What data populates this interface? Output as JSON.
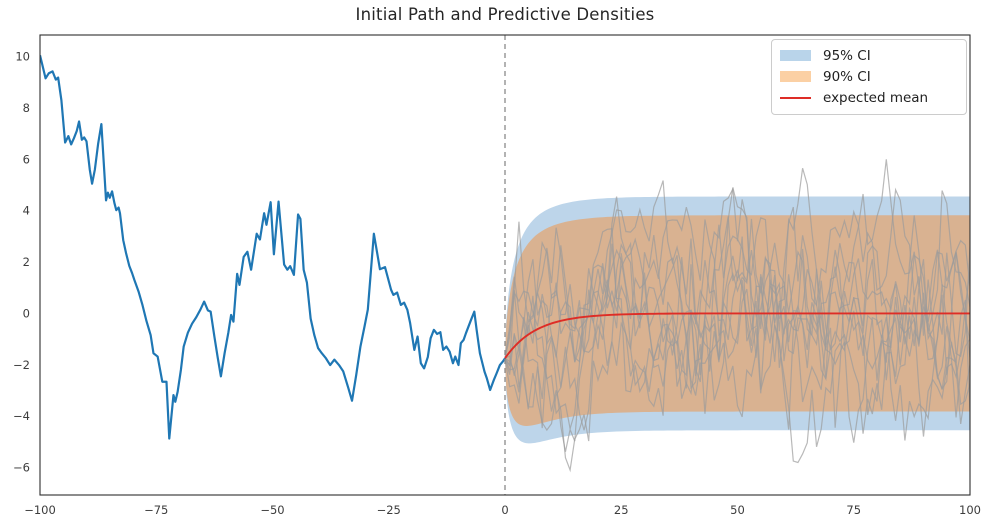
{
  "chart_data": {
    "type": "line",
    "title": "Initial Path and Predictive Densities",
    "xlabel": "",
    "ylabel": "",
    "xlim": [
      -100,
      100
    ],
    "ylim": [
      -7.1,
      10.8
    ],
    "x_ticks": [
      -100,
      -75,
      -50,
      -25,
      0,
      25,
      50,
      75,
      100
    ],
    "y_ticks": [
      10,
      8,
      6,
      4,
      2,
      0,
      -2,
      -4,
      -6
    ],
    "grid": false,
    "legend_position": "upper right",
    "legend": [
      {
        "label": "95% CI",
        "swatch": "patch",
        "color": "#b9d4ea"
      },
      {
        "label": "90% CI",
        "swatch": "patch",
        "color": "#fbd0a4"
      },
      {
        "label": "expected mean",
        "swatch": "line",
        "color": "#de2d26"
      }
    ],
    "divider": {
      "x": 0,
      "color": "#8a8a8a",
      "style": "dashed"
    },
    "initial_path": {
      "name": "initial path",
      "color": "#1f77b4",
      "points": [
        [
          -100,
          10.05
        ],
        [
          -99.4,
          9.6
        ],
        [
          -98.8,
          9.15
        ],
        [
          -98.1,
          9.35
        ],
        [
          -97.3,
          9.42
        ],
        [
          -96.6,
          9.1
        ],
        [
          -96.1,
          9.18
        ],
        [
          -95.4,
          8.3
        ],
        [
          -94.6,
          6.65
        ],
        [
          -93.9,
          6.9
        ],
        [
          -93.3,
          6.58
        ],
        [
          -92.7,
          6.82
        ],
        [
          -92.1,
          7.1
        ],
        [
          -91.6,
          7.47
        ],
        [
          -91,
          6.76
        ],
        [
          -90.5,
          6.85
        ],
        [
          -90,
          6.7
        ],
        [
          -89.3,
          5.6
        ],
        [
          -88.8,
          5.05
        ],
        [
          -88.2,
          5.6
        ],
        [
          -87.5,
          6.6
        ],
        [
          -86.8,
          7.37
        ],
        [
          -86.2,
          5.6
        ],
        [
          -85.8,
          4.4
        ],
        [
          -85.4,
          4.7
        ],
        [
          -85,
          4.5
        ],
        [
          -84.5,
          4.75
        ],
        [
          -84,
          4.3
        ],
        [
          -83.6,
          4.02
        ],
        [
          -83.1,
          4.12
        ],
        [
          -82.8,
          3.9
        ],
        [
          -82.1,
          2.85
        ],
        [
          -81.5,
          2.35
        ],
        [
          -80.8,
          1.85
        ],
        [
          -80.2,
          1.57
        ],
        [
          -79.7,
          1.3
        ],
        [
          -78.8,
          0.85
        ],
        [
          -78,
          0.35
        ],
        [
          -77.1,
          -0.3
        ],
        [
          -76.2,
          -0.85
        ],
        [
          -75.6,
          -1.55
        ],
        [
          -74.7,
          -1.68
        ],
        [
          -73.7,
          -2.66
        ],
        [
          -72.8,
          -2.66
        ],
        [
          -72.2,
          -4.87
        ],
        [
          -71.3,
          -3.18
        ],
        [
          -70.9,
          -3.44
        ],
        [
          -70.4,
          -3.05
        ],
        [
          -69.7,
          -2.2
        ],
        [
          -69.1,
          -1.29
        ],
        [
          -68.2,
          -0.75
        ],
        [
          -67.3,
          -0.4
        ],
        [
          -66.4,
          -0.15
        ],
        [
          -65.5,
          0.15
        ],
        [
          -64.7,
          0.46
        ],
        [
          -63.9,
          0.12
        ],
        [
          -63.3,
          0.07
        ],
        [
          -62.5,
          -0.9
        ],
        [
          -61.8,
          -1.7
        ],
        [
          -61.1,
          -2.45
        ],
        [
          -60.3,
          -1.55
        ],
        [
          -59.5,
          -0.75
        ],
        [
          -58.9,
          -0.06
        ],
        [
          -58.4,
          -0.32
        ],
        [
          -57.6,
          1.54
        ],
        [
          -57.1,
          1.11
        ],
        [
          -56.2,
          2.2
        ],
        [
          -55.4,
          2.4
        ],
        [
          -54.6,
          1.7
        ],
        [
          -53.4,
          3.1
        ],
        [
          -52.7,
          2.88
        ],
        [
          -51.8,
          3.9
        ],
        [
          -51.3,
          3.45
        ],
        [
          -50.4,
          4.33
        ],
        [
          -49.7,
          2.3
        ],
        [
          -48.7,
          4.35
        ],
        [
          -47.5,
          1.9
        ],
        [
          -46.8,
          1.7
        ],
        [
          -46.2,
          1.84
        ],
        [
          -45.4,
          1.5
        ],
        [
          -44.5,
          3.85
        ],
        [
          -44,
          3.68
        ],
        [
          -43.3,
          1.7
        ],
        [
          -42.6,
          1.2
        ],
        [
          -41.8,
          -0.2
        ],
        [
          -41,
          -0.85
        ],
        [
          -40.2,
          -1.35
        ],
        [
          -39.4,
          -1.55
        ],
        [
          -38.5,
          -1.75
        ],
        [
          -37.6,
          -2.01
        ],
        [
          -36.7,
          -1.8
        ],
        [
          -35.7,
          -2.01
        ],
        [
          -34.8,
          -2.25
        ],
        [
          -33.7,
          -2.9
        ],
        [
          -32.9,
          -3.4
        ],
        [
          -32,
          -2.4
        ],
        [
          -31.1,
          -1.3
        ],
        [
          -30.2,
          -0.5
        ],
        [
          -29.5,
          0.15
        ],
        [
          -28.2,
          3.1
        ],
        [
          -27.3,
          2.15
        ],
        [
          -26.9,
          1.72
        ],
        [
          -25.8,
          1.8
        ],
        [
          -24.5,
          0.92
        ],
        [
          -24,
          0.72
        ],
        [
          -23.2,
          0.81
        ],
        [
          -22.4,
          0.33
        ],
        [
          -21.7,
          0.42
        ],
        [
          -21,
          0.14
        ],
        [
          -20.4,
          -0.38
        ],
        [
          -19.5,
          -1.42
        ],
        [
          -18.8,
          -0.9
        ],
        [
          -18.1,
          -1.94
        ],
        [
          -17.4,
          -2.14
        ],
        [
          -16.6,
          -1.7
        ],
        [
          -16,
          -0.97
        ],
        [
          -15.3,
          -0.64
        ],
        [
          -14.6,
          -0.8
        ],
        [
          -13.9,
          -0.73
        ],
        [
          -13.3,
          -1.42
        ],
        [
          -12.6,
          -1.29
        ],
        [
          -11.9,
          -1.49
        ],
        [
          -11.2,
          -1.94
        ],
        [
          -10.7,
          -1.68
        ],
        [
          -10,
          -2.01
        ],
        [
          -9.5,
          -1.16
        ],
        [
          -8.9,
          -1.03
        ],
        [
          -8.4,
          -0.77
        ],
        [
          -7.3,
          -0.25
        ],
        [
          -6.6,
          0.07
        ],
        [
          -6.1,
          -0.64
        ],
        [
          -5.4,
          -1.55
        ],
        [
          -4.4,
          -2.27
        ],
        [
          -3.9,
          -2.53
        ],
        [
          -3.2,
          -2.98
        ],
        [
          -2.4,
          -2.59
        ],
        [
          -1.8,
          -2.33
        ],
        [
          -1.1,
          -2.01
        ],
        [
          -0.5,
          -1.88
        ],
        [
          0,
          -1.75
        ]
      ]
    },
    "forecast": {
      "start": {
        "x": 0,
        "y": -1.75
      },
      "t_end": 100,
      "expected_mean": {
        "color": "#de2d26",
        "long_run_mean": 0,
        "theta": 0.15,
        "value_at_t100": 0
      },
      "ci_95": {
        "fill": "#bdd5ea",
        "half_width_at_infinity": 4.55,
        "variance_theta": 0.2
      },
      "ci_90": {
        "fill": "#d9b291",
        "half_width_at_infinity": 3.82,
        "variance_theta": 0.2
      },
      "sample_paths": {
        "count": 10,
        "color": "#9b9b9b",
        "opacity": 0.7,
        "theta": 0.15,
        "step_sigma": 1.25,
        "seed": 20
      }
    },
    "axis": {
      "spine_color": "#2e2e2e",
      "tick_label_color": "#3c3c3c",
      "tick_font_px": 11.5
    }
  }
}
